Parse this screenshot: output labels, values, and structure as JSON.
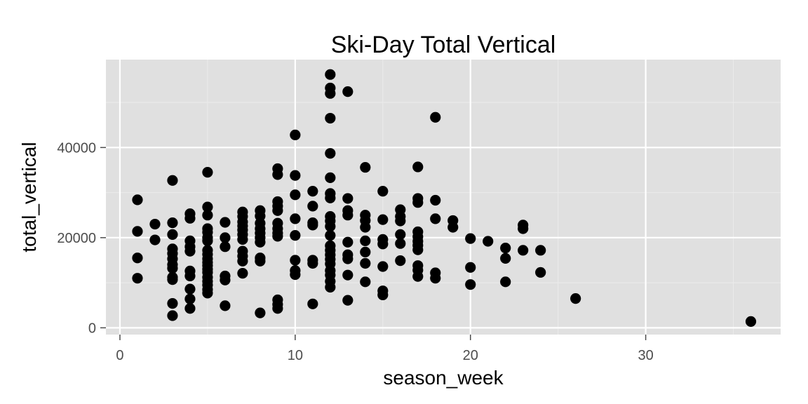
{
  "chart_data": {
    "type": "scatter",
    "title": "Ski-Day Total Vertical",
    "xlabel": "season_week",
    "ylabel": "total_vertical",
    "xlim": [
      -0.8,
      37.7
    ],
    "ylim": [
      -1500,
      59500
    ],
    "x_ticks": [
      0,
      10,
      20,
      30
    ],
    "x_tick_labels": [
      "0",
      "10",
      "20",
      "30"
    ],
    "x_minor_ticks": [
      5,
      15,
      25,
      35
    ],
    "y_ticks": [
      0,
      20000,
      40000
    ],
    "y_tick_labels": [
      "0",
      "20000",
      "40000"
    ],
    "y_minor_ticks": [
      10000,
      30000,
      50000
    ],
    "grid": true,
    "legend": "none",
    "colors": {
      "panel": "#e0e0e0",
      "grid": "#ffffff",
      "point": "#000000",
      "tick": "#4d4d4d"
    },
    "points": [
      [
        1,
        28400
      ],
      [
        1,
        21400
      ],
      [
        1,
        15500
      ],
      [
        1,
        11000
      ],
      [
        2,
        23000
      ],
      [
        2,
        19500
      ],
      [
        3,
        32700
      ],
      [
        3,
        23300
      ],
      [
        3,
        20700
      ],
      [
        3,
        17500
      ],
      [
        3,
        16500
      ],
      [
        3,
        15300
      ],
      [
        3,
        14000
      ],
      [
        3,
        13200
      ],
      [
        3,
        11200
      ],
      [
        3,
        10700
      ],
      [
        3,
        5400
      ],
      [
        3,
        2700
      ],
      [
        4,
        25300
      ],
      [
        4,
        24300
      ],
      [
        4,
        19300
      ],
      [
        4,
        18000
      ],
      [
        4,
        17000
      ],
      [
        4,
        12600
      ],
      [
        4,
        11500
      ],
      [
        4,
        8600
      ],
      [
        4,
        6400
      ],
      [
        4,
        4300
      ],
      [
        5,
        34500
      ],
      [
        5,
        26800
      ],
      [
        5,
        25000
      ],
      [
        5,
        22000
      ],
      [
        5,
        21200
      ],
      [
        5,
        20000
      ],
      [
        5,
        19300
      ],
      [
        5,
        17200
      ],
      [
        5,
        16300
      ],
      [
        5,
        15300
      ],
      [
        5,
        14500
      ],
      [
        5,
        13800
      ],
      [
        5,
        13000
      ],
      [
        5,
        12300
      ],
      [
        5,
        11200
      ],
      [
        5,
        10300
      ],
      [
        5,
        9500
      ],
      [
        5,
        8500
      ],
      [
        5,
        7700
      ],
      [
        6,
        23400
      ],
      [
        6,
        20000
      ],
      [
        6,
        18000
      ],
      [
        6,
        11500
      ],
      [
        6,
        10600
      ],
      [
        6,
        4900
      ],
      [
        7,
        25700
      ],
      [
        7,
        24700
      ],
      [
        7,
        23500
      ],
      [
        7,
        22600
      ],
      [
        7,
        21700
      ],
      [
        7,
        20700
      ],
      [
        7,
        19600
      ],
      [
        7,
        17000
      ],
      [
        7,
        15900
      ],
      [
        7,
        14800
      ],
      [
        7,
        12100
      ],
      [
        8,
        26000
      ],
      [
        8,
        24800
      ],
      [
        8,
        23200
      ],
      [
        8,
        22000
      ],
      [
        8,
        21000
      ],
      [
        8,
        20000
      ],
      [
        8,
        19000
      ],
      [
        8,
        15500
      ],
      [
        8,
        14800
      ],
      [
        8,
        3300
      ],
      [
        9,
        35300
      ],
      [
        9,
        34000
      ],
      [
        9,
        28000
      ],
      [
        9,
        27000
      ],
      [
        9,
        26000
      ],
      [
        9,
        23200
      ],
      [
        9,
        22000
      ],
      [
        9,
        21000
      ],
      [
        9,
        20300
      ],
      [
        9,
        6200
      ],
      [
        9,
        5200
      ],
      [
        9,
        4300
      ],
      [
        10,
        42800
      ],
      [
        10,
        33800
      ],
      [
        10,
        29500
      ],
      [
        10,
        24200
      ],
      [
        10,
        20500
      ],
      [
        10,
        15000
      ],
      [
        10,
        12700
      ],
      [
        10,
        11800
      ],
      [
        11,
        30300
      ],
      [
        11,
        27000
      ],
      [
        11,
        23300
      ],
      [
        11,
        22800
      ],
      [
        11,
        15000
      ],
      [
        11,
        14300
      ],
      [
        11,
        5300
      ],
      [
        12,
        56200
      ],
      [
        12,
        53200
      ],
      [
        12,
        52000
      ],
      [
        12,
        46500
      ],
      [
        12,
        38700
      ],
      [
        12,
        33300
      ],
      [
        12,
        29800
      ],
      [
        12,
        28800
      ],
      [
        12,
        24700
      ],
      [
        12,
        23700
      ],
      [
        12,
        22500
      ],
      [
        12,
        20500
      ],
      [
        12,
        18200
      ],
      [
        12,
        17200
      ],
      [
        12,
        16200
      ],
      [
        12,
        15200
      ],
      [
        12,
        14200
      ],
      [
        12,
        12700
      ],
      [
        12,
        11700
      ],
      [
        12,
        10300
      ],
      [
        12,
        9000
      ],
      [
        13,
        52400
      ],
      [
        13,
        28700
      ],
      [
        13,
        26000
      ],
      [
        13,
        25000
      ],
      [
        13,
        19000
      ],
      [
        13,
        16200
      ],
      [
        13,
        15300
      ],
      [
        13,
        11700
      ],
      [
        13,
        6100
      ],
      [
        14,
        35600
      ],
      [
        14,
        25000
      ],
      [
        14,
        23800
      ],
      [
        14,
        22300
      ],
      [
        14,
        19300
      ],
      [
        14,
        16800
      ],
      [
        14,
        14300
      ],
      [
        14,
        10200
      ],
      [
        15,
        30300
      ],
      [
        15,
        24000
      ],
      [
        15,
        19600
      ],
      [
        15,
        18600
      ],
      [
        15,
        13600
      ],
      [
        15,
        8200
      ],
      [
        15,
        7300
      ],
      [
        16,
        26200
      ],
      [
        16,
        24700
      ],
      [
        16,
        23700
      ],
      [
        16,
        20700
      ],
      [
        16,
        18700
      ],
      [
        16,
        14900
      ],
      [
        17,
        35700
      ],
      [
        17,
        28700
      ],
      [
        17,
        27800
      ],
      [
        17,
        21300
      ],
      [
        17,
        20200
      ],
      [
        17,
        19200
      ],
      [
        17,
        18300
      ],
      [
        17,
        17300
      ],
      [
        17,
        13800
      ],
      [
        17,
        12800
      ],
      [
        17,
        11400
      ],
      [
        18,
        46700
      ],
      [
        18,
        28300
      ],
      [
        18,
        24200
      ],
      [
        18,
        12200
      ],
      [
        18,
        11000
      ],
      [
        19,
        23800
      ],
      [
        19,
        22300
      ],
      [
        20,
        19800
      ],
      [
        20,
        13400
      ],
      [
        20,
        9600
      ],
      [
        21,
        19200
      ],
      [
        22,
        17700
      ],
      [
        22,
        15400
      ],
      [
        22,
        10200
      ],
      [
        23,
        22800
      ],
      [
        23,
        22000
      ],
      [
        23,
        17200
      ],
      [
        24,
        17200
      ],
      [
        24,
        12300
      ],
      [
        26,
        6500
      ],
      [
        36,
        1400
      ]
    ]
  }
}
